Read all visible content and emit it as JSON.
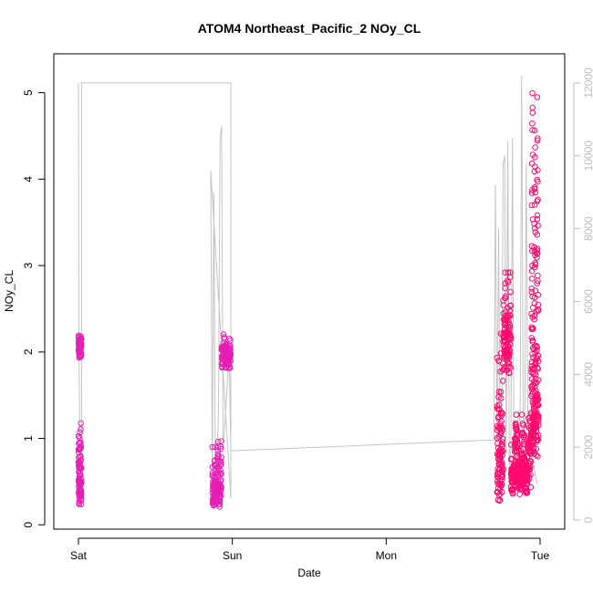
{
  "chart_data": {
    "type": "scatter",
    "title": "ATOM4 Northeast_Pacific_2 NOy_CL",
    "xlabel": "Date",
    "ylabel": "NOy_CL",
    "x_ticks": [
      "Sat",
      "Sun",
      "Mon",
      "Tue"
    ],
    "x_tick_positions_days": [
      0,
      1,
      2,
      3
    ],
    "xlim_days": [
      -0.16,
      3.16
    ],
    "ylim": [
      -0.05,
      5.45
    ],
    "y_ticks": [
      0,
      1,
      2,
      3,
      4,
      5
    ],
    "y2_ticks": [
      0,
      2000,
      4000,
      6000,
      8000,
      10000,
      12000
    ],
    "y2lim": [
      -250,
      12800
    ],
    "grid": false,
    "legend": "none",
    "colors": {
      "points_early": "#e61fb4",
      "points_late": "#ff0a6e",
      "altitude_line": "#c4c4c4",
      "right_axis": "#bdbdbd"
    },
    "series": [
      {
        "role": "points",
        "segments": [
          {
            "start": 0.0,
            "end": 0.02,
            "n": 60,
            "base": 2.0,
            "spread": 0.18,
            "jitter": 0.2,
            "low": 1.8,
            "high": 2.32
          },
          {
            "start": 0.0,
            "end": 0.02,
            "n": 90,
            "base": 0.35,
            "spread": 0.9,
            "jitter": 0.3,
            "low": 0.17,
            "high": 1.45
          },
          {
            "start": 0.87,
            "end": 0.93,
            "n": 140,
            "base": 0.3,
            "spread": 0.7,
            "jitter": 0.2,
            "low": 0.08,
            "high": 1.3
          },
          {
            "start": 0.93,
            "end": 0.99,
            "n": 110,
            "base": 1.9,
            "spread": 0.3,
            "jitter": 0.2,
            "low": 1.5,
            "high": 2.42
          },
          {
            "start": 2.72,
            "end": 2.76,
            "n": 110,
            "base": 0.5,
            "spread": 1.8,
            "jitter": 0.5,
            "low": 0.1,
            "high": 2.57
          },
          {
            "start": 2.76,
            "end": 2.81,
            "n": 110,
            "base": 2.0,
            "spread": 0.9,
            "jitter": 0.5,
            "low": 0.1,
            "high": 2.92
          },
          {
            "start": 2.81,
            "end": 2.94,
            "n": 260,
            "base": 0.5,
            "spread": 0.8,
            "jitter": 0.3,
            "low": 0.1,
            "high": 1.7
          },
          {
            "start": 2.94,
            "end": 2.99,
            "n": 220,
            "base": 1.0,
            "spread": 4.3,
            "jitter": 0.5,
            "low": 0.3,
            "high": 5.3
          }
        ]
      },
      {
        "role": "line",
        "axis": "right",
        "x": [
          0.0,
          0.003,
          0.006,
          0.01,
          0.012,
          0.015,
          0.02,
          0.02,
          0.99,
          0.99,
          0.86,
          0.87,
          0.88,
          0.89,
          0.9,
          0.91,
          0.92,
          0.93,
          0.94,
          0.95,
          0.96,
          0.97,
          0.98,
          0.99,
          2.7,
          2.71,
          2.72,
          2.73,
          2.74,
          2.75,
          2.76,
          2.77,
          2.78,
          2.79,
          2.8,
          2.81,
          2.82,
          2.83,
          2.84,
          2.85,
          2.86,
          2.87,
          2.88,
          2.89,
          2.9,
          2.91,
          2.92,
          2.93,
          2.94,
          2.95,
          2.96,
          2.97,
          2.98
        ],
        "y": [
          12000,
          5000,
          3500,
          2000,
          1200,
          700,
          600,
          12000,
          12000,
          600,
          9600,
          1200,
          9000,
          1400,
          1500,
          3000,
          10500,
          10800,
          2000,
          2500,
          3200,
          4000,
          4400,
          1900,
          2200,
          9200,
          2000,
          8000,
          1500,
          2200,
          9800,
          10000,
          1800,
          10400,
          1500,
          2000,
          10500,
          1500,
          2000,
          2400,
          3000,
          2600,
          12200,
          3000,
          2200,
          9800,
          2700,
          2300,
          2500,
          1800,
          1500,
          1200,
          1000
        ]
      }
    ]
  }
}
